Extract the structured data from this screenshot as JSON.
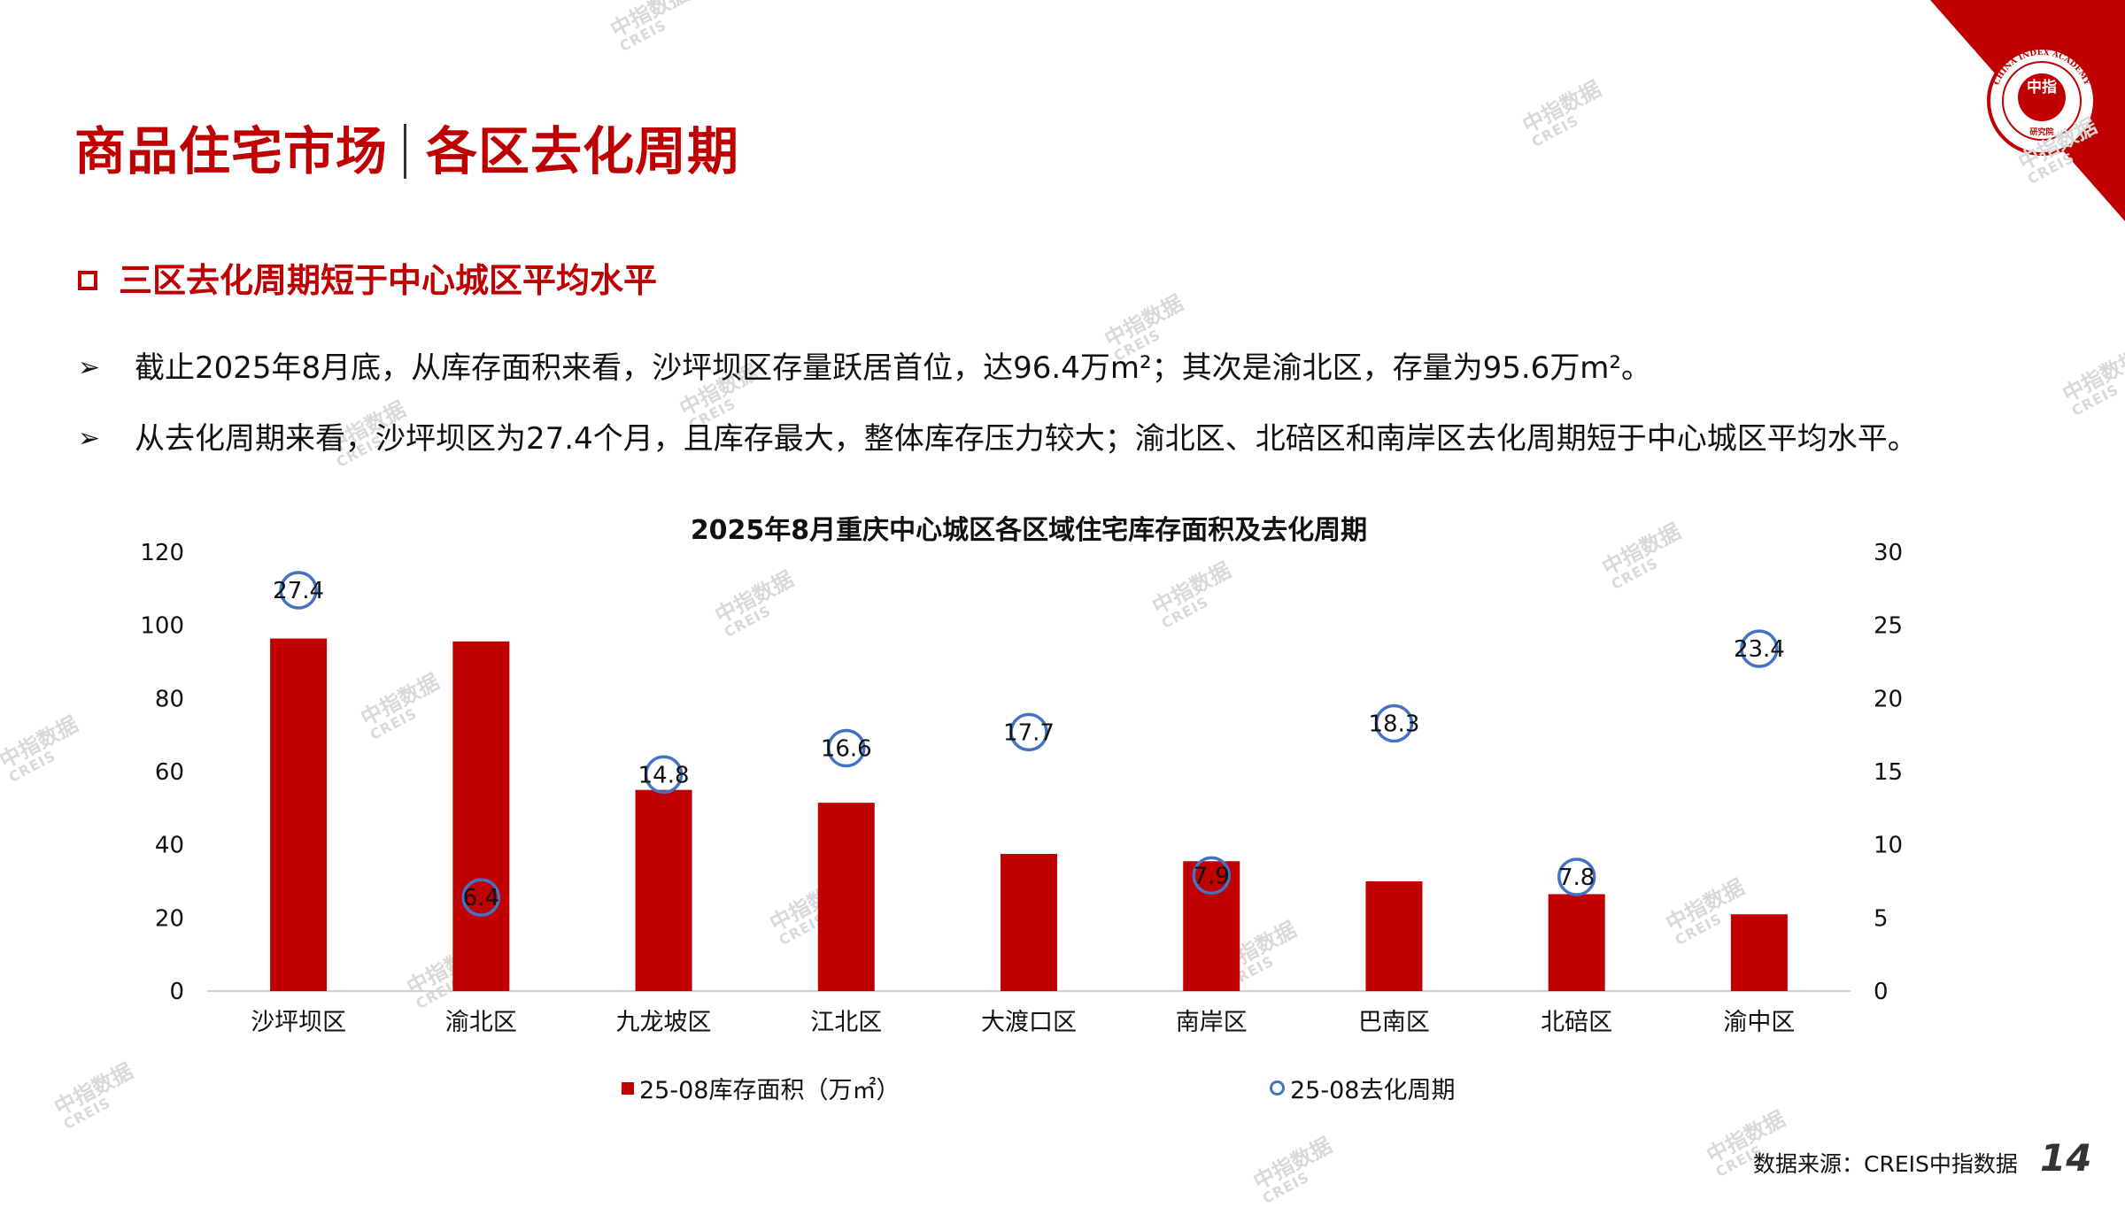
{
  "header": {
    "title_left": "商品住宅市场",
    "title_right": "各区去化周期",
    "subtitle": "三区去化周期短于中心城区平均水平"
  },
  "bullets": [
    "截止2025年8月底，从库存面积来看，沙坪坝区存量跃居首位，达96.4万m²；其次是渝北区，存量为95.6万m²。",
    "从去化周期来看，沙坪坝区为27.4个月，且库存最大，整体库存压力较大；渝北区、北碚区和南岸区去化周期短于中心城区平均水平。"
  ],
  "logo": {
    "ring_text": "CHINA INDEX ACADEMY",
    "center_text": "中指",
    "bottom_text": "研究院"
  },
  "watermark": {
    "line1": "中指数据",
    "line2": "CREIS"
  },
  "chart_data": {
    "type": "bar",
    "title": "2025年8月重庆中心城区各区域住宅库存面积及去化周期",
    "categories": [
      "沙坪坝区",
      "渝北区",
      "九龙坡区",
      "江北区",
      "大渡口区",
      "南岸区",
      "巴南区",
      "北碚区",
      "渝中区"
    ],
    "series": [
      {
        "name": "25-08库存面积（万㎡）",
        "type": "bar",
        "axis": "left",
        "color": "#c00000",
        "values": [
          96.4,
          95.6,
          55.0,
          51.5,
          37.5,
          35.5,
          30.0,
          26.5,
          21.0
        ]
      },
      {
        "name": "25-08去化周期",
        "type": "scatter",
        "axis": "right",
        "color": "#4472c4",
        "values": [
          27.4,
          6.4,
          14.8,
          16.6,
          17.7,
          7.9,
          18.3,
          7.8,
          23.4
        ],
        "labels": [
          "27.4",
          "6.4",
          "14.8",
          "16.6",
          "17.7",
          "7.9",
          "18.3",
          "7.8",
          "23.4"
        ]
      }
    ],
    "y_left": {
      "ylim": [
        0,
        120
      ],
      "ticks": [
        "0",
        "20",
        "40",
        "60",
        "80",
        "100",
        "120"
      ]
    },
    "y_right": {
      "ylim": [
        0,
        30
      ],
      "ticks": [
        "0",
        "5",
        "10",
        "15",
        "20",
        "25",
        "30"
      ]
    },
    "grid": false,
    "legend": "bottom"
  },
  "footer": {
    "source": "数据来源：CREIS中指数据",
    "page": "14"
  }
}
